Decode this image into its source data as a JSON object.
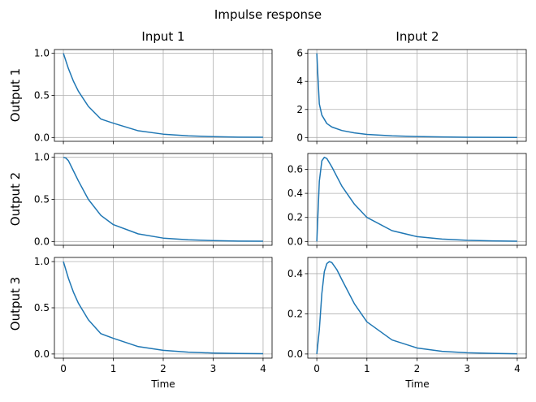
{
  "chart_data": {
    "type": "line",
    "title": "Impulse response",
    "xlabel": "Time",
    "column_titles": [
      "Input 1",
      "Input 2"
    ],
    "row_labels": [
      "Output 1",
      "Output 2",
      "Output 3"
    ],
    "xlim": [
      0,
      4
    ],
    "xticks": [
      0,
      1,
      2,
      3,
      4
    ],
    "grid": true,
    "line_color": "#1f77b4",
    "panels": [
      {
        "row": 0,
        "col": 0,
        "ylim": [
          0,
          1
        ],
        "yticks": [
          0,
          0.5,
          1.0
        ],
        "ytick_labels": [
          "0.0",
          "0.5",
          "1.0"
        ],
        "x": [
          0,
          0.1,
          0.2,
          0.3,
          0.5,
          0.75,
          1.0,
          1.5,
          2.0,
          2.5,
          3.0,
          3.5,
          4.0
        ],
        "y": [
          1.0,
          0.82,
          0.67,
          0.55,
          0.37,
          0.22,
          0.17,
          0.08,
          0.04,
          0.02,
          0.01,
          0.005,
          0.003
        ]
      },
      {
        "row": 0,
        "col": 1,
        "ylim": [
          0,
          6
        ],
        "yticks": [
          0,
          2,
          4,
          6
        ],
        "ytick_labels": [
          "0",
          "2",
          "4",
          "6"
        ],
        "x": [
          0,
          0.02,
          0.05,
          0.1,
          0.2,
          0.3,
          0.5,
          0.75,
          1.0,
          1.5,
          2.0,
          2.5,
          3.0,
          3.5,
          4.0
        ],
        "y": [
          6.0,
          4.5,
          2.4,
          1.6,
          1.0,
          0.75,
          0.5,
          0.33,
          0.22,
          0.12,
          0.07,
          0.04,
          0.02,
          0.01,
          0.005
        ]
      },
      {
        "row": 1,
        "col": 0,
        "ylim": [
          0,
          1
        ],
        "yticks": [
          0,
          0.5,
          1.0
        ],
        "ytick_labels": [
          "0.0",
          "0.5",
          "1.0"
        ],
        "x": [
          0,
          0.05,
          0.1,
          0.2,
          0.3,
          0.5,
          0.75,
          1.0,
          1.5,
          2.0,
          2.5,
          3.0,
          3.5,
          4.0
        ],
        "y": [
          1.0,
          0.99,
          0.96,
          0.84,
          0.72,
          0.5,
          0.31,
          0.2,
          0.09,
          0.04,
          0.02,
          0.01,
          0.005,
          0.003
        ]
      },
      {
        "row": 1,
        "col": 1,
        "ylim": [
          0,
          0.7
        ],
        "yticks": [
          0,
          0.2,
          0.4,
          0.6
        ],
        "ytick_labels": [
          "0.0",
          "0.2",
          "0.4",
          "0.6"
        ],
        "x": [
          0,
          0.05,
          0.1,
          0.15,
          0.2,
          0.3,
          0.5,
          0.75,
          1.0,
          1.5,
          2.0,
          2.5,
          3.0,
          3.5,
          4.0
        ],
        "y": [
          0.0,
          0.5,
          0.67,
          0.7,
          0.69,
          0.62,
          0.46,
          0.31,
          0.2,
          0.09,
          0.04,
          0.02,
          0.01,
          0.005,
          0.002
        ]
      },
      {
        "row": 2,
        "col": 0,
        "ylim": [
          0,
          1
        ],
        "yticks": [
          0,
          0.5,
          1.0
        ],
        "ytick_labels": [
          "0.0",
          "0.5",
          "1.0"
        ],
        "x": [
          0,
          0.1,
          0.2,
          0.3,
          0.5,
          0.75,
          1.0,
          1.5,
          2.0,
          2.5,
          3.0,
          3.5,
          4.0
        ],
        "y": [
          1.0,
          0.82,
          0.67,
          0.55,
          0.37,
          0.22,
          0.17,
          0.08,
          0.04,
          0.02,
          0.01,
          0.005,
          0.003
        ]
      },
      {
        "row": 2,
        "col": 1,
        "ylim": [
          0,
          0.46
        ],
        "yticks": [
          0,
          0.2,
          0.4
        ],
        "ytick_labels": [
          "0.0",
          "0.2",
          "0.4"
        ],
        "x": [
          0,
          0.05,
          0.1,
          0.15,
          0.2,
          0.25,
          0.3,
          0.4,
          0.5,
          0.75,
          1.0,
          1.5,
          2.0,
          2.5,
          3.0,
          3.5,
          4.0
        ],
        "y": [
          0.0,
          0.12,
          0.3,
          0.41,
          0.45,
          0.46,
          0.455,
          0.42,
          0.37,
          0.25,
          0.16,
          0.07,
          0.03,
          0.013,
          0.006,
          0.003,
          0.001
        ]
      }
    ]
  }
}
